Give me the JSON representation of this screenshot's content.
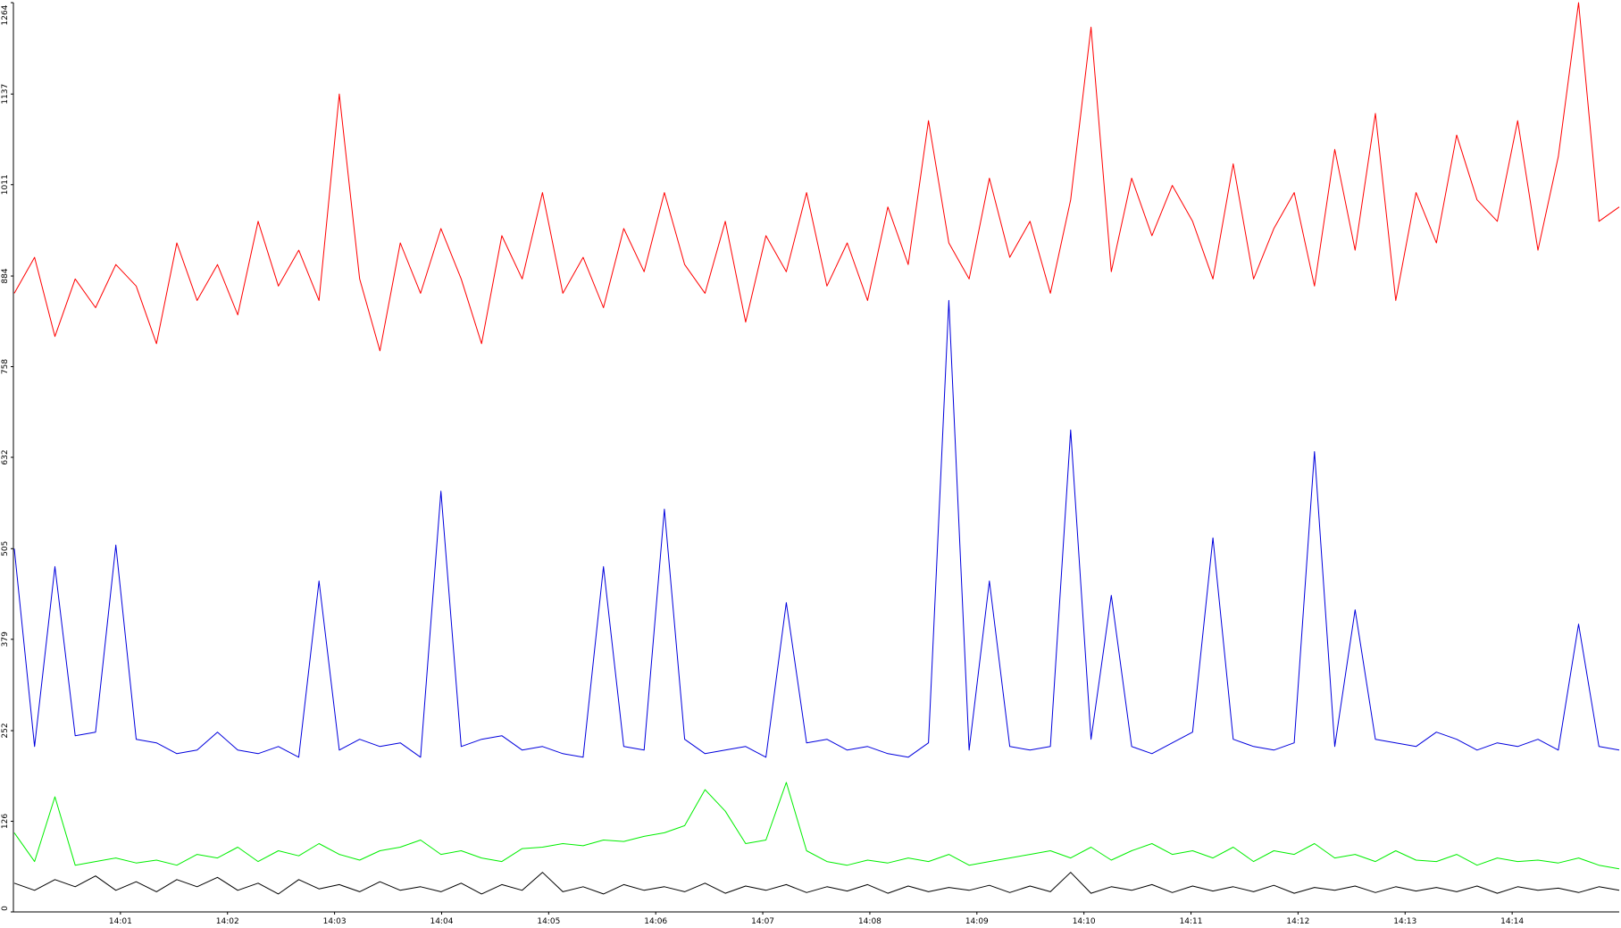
{
  "chart_data": {
    "type": "line",
    "ylim": [
      0,
      1264
    ],
    "yticks": [
      0,
      126,
      252,
      379,
      505,
      632,
      758,
      884,
      1011,
      1137,
      1264
    ],
    "xticks": [
      "14:01",
      "14:02",
      "14:03",
      "14:04",
      "14:05",
      "14:06",
      "14:07",
      "14:08",
      "14:09",
      "14:10",
      "14:11",
      "14:12",
      "14:13",
      "14:14"
    ],
    "grid": false,
    "series": [
      {
        "color": "#ff0000",
        "values": [
          860,
          910,
          800,
          880,
          840,
          900,
          870,
          790,
          930,
          850,
          900,
          830,
          960,
          870,
          920,
          850,
          1137,
          880,
          780,
          930,
          860,
          950,
          880,
          790,
          940,
          880,
          1000,
          860,
          910,
          840,
          950,
          890,
          1000,
          900,
          860,
          960,
          820,
          940,
          890,
          1000,
          870,
          930,
          850,
          980,
          900,
          1100,
          930,
          880,
          1020,
          910,
          960,
          860,
          990,
          1230,
          890,
          1020,
          940,
          1010,
          960,
          880,
          1040,
          880,
          950,
          1000,
          870,
          1060,
          920,
          1110,
          850,
          1000,
          930,
          1080,
          990,
          960,
          1100,
          920,
          1050,
          1264,
          960,
          980
        ]
      },
      {
        "color": "#0000dd",
        "values": [
          505,
          230,
          480,
          245,
          250,
          510,
          240,
          235,
          220,
          225,
          250,
          225,
          220,
          230,
          215,
          460,
          225,
          240,
          230,
          235,
          215,
          585,
          230,
          240,
          245,
          225,
          230,
          220,
          215,
          480,
          230,
          225,
          560,
          240,
          220,
          225,
          230,
          215,
          430,
          235,
          240,
          225,
          230,
          220,
          215,
          235,
          850,
          225,
          460,
          230,
          225,
          230,
          670,
          240,
          440,
          230,
          220,
          235,
          250,
          520,
          240,
          230,
          225,
          235,
          640,
          230,
          420,
          240,
          235,
          230,
          250,
          240,
          225,
          235,
          230,
          240,
          225,
          400,
          230,
          225
        ]
      },
      {
        "color": "#00ee00",
        "values": [
          110,
          70,
          160,
          65,
          70,
          75,
          68,
          72,
          65,
          80,
          75,
          90,
          70,
          85,
          78,
          95,
          80,
          72,
          85,
          90,
          100,
          80,
          85,
          75,
          70,
          88,
          90,
          95,
          92,
          100,
          98,
          105,
          110,
          120,
          170,
          140,
          95,
          100,
          180,
          85,
          70,
          65,
          72,
          68,
          75,
          70,
          80,
          65,
          70,
          75,
          80,
          85,
          75,
          90,
          72,
          85,
          95,
          80,
          85,
          75,
          90,
          70,
          85,
          80,
          95,
          75,
          80,
          70,
          85,
          72,
          70,
          80,
          65,
          75,
          70,
          72,
          68,
          75,
          65,
          60
        ]
      },
      {
        "color": "#000000",
        "values": [
          40,
          30,
          45,
          35,
          50,
          30,
          42,
          28,
          45,
          35,
          48,
          30,
          40,
          25,
          45,
          32,
          38,
          28,
          42,
          30,
          35,
          28,
          40,
          25,
          38,
          30,
          55,
          28,
          35,
          25,
          38,
          30,
          35,
          28,
          40,
          26,
          36,
          30,
          38,
          27,
          35,
          29,
          38,
          26,
          36,
          28,
          34,
          30,
          37,
          27,
          36,
          28,
          55,
          26,
          35,
          30,
          38,
          27,
          36,
          29,
          35,
          28,
          37,
          26,
          34,
          30,
          36,
          27,
          35,
          29,
          34,
          28,
          36,
          26,
          35,
          30,
          33,
          27,
          35,
          30
        ]
      }
    ]
  }
}
